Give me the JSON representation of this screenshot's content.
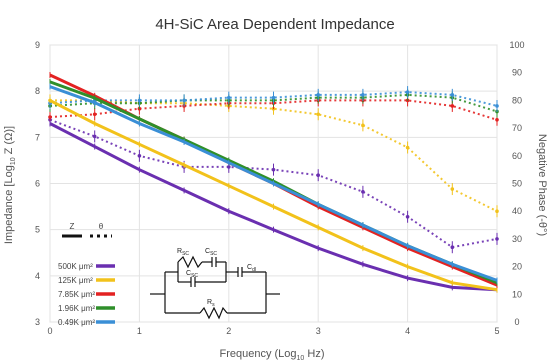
{
  "chart_data": {
    "type": "line",
    "title": "4H-SiC Area Dependent Impedance",
    "xlabel": "Frequency (Log",
    "xlabel_sub": "10",
    "xlabel_end": " Hz)",
    "ylabel": "Impedance [Log",
    "ylabel_sub": "10",
    "ylabel_end": " Z (Ω)]",
    "y2label": "Negative Phase (-θ°)",
    "xlim": [
      0,
      5
    ],
    "ylim": [
      3,
      9
    ],
    "y2lim": [
      0,
      100
    ],
    "xticks": [
      "0",
      "1",
      "2",
      "3",
      "4",
      "5"
    ],
    "yticks": [
      "3",
      "4",
      "5",
      "6",
      "7",
      "8",
      "9"
    ],
    "y2ticks": [
      "0",
      "10",
      "20",
      "30",
      "40",
      "50",
      "60",
      "70",
      "80",
      "90",
      "100"
    ],
    "grid": true,
    "legend": {
      "placement": "bottom-left",
      "style_labels": [
        "Z",
        "θ"
      ],
      "entries": [
        {
          "label": "500K μm²",
          "color": "#6a2fb0"
        },
        {
          "label": "125K μm²",
          "color": "#f2c21b"
        },
        {
          "label": "7.85K μm²",
          "color": "#e32222"
        },
        {
          "label": "1.96K μm²",
          "color": "#2f8f2a"
        },
        {
          "label": "0.49K μm²",
          "color": "#3a8fd6"
        }
      ]
    },
    "circuit_labels": {
      "r_top": "R",
      "r_top_sub": "SC",
      "c_top": "C",
      "c_top_sub": "SC",
      "c_mid": "C",
      "c_mid_sub": "SC",
      "c_right": "C",
      "c_right_sub": "dl",
      "r_bottom": "R",
      "r_bottom_sub": "s"
    },
    "series": [
      {
        "name": "500K μm²",
        "color": "#6a2fb0",
        "impedance": [
          [
            0,
            7.3
          ],
          [
            0.5,
            6.8
          ],
          [
            1,
            6.3
          ],
          [
            1.5,
            5.85
          ],
          [
            2,
            5.4
          ],
          [
            2.5,
            5.0
          ],
          [
            3,
            4.6
          ],
          [
            3.5,
            4.25
          ],
          [
            4,
            3.95
          ],
          [
            4.5,
            3.75
          ],
          [
            5,
            3.7
          ]
        ],
        "phase": [
          [
            0,
            73
          ],
          [
            0.5,
            67
          ],
          [
            1,
            60
          ],
          [
            1.5,
            56
          ],
          [
            2,
            56
          ],
          [
            2.5,
            55
          ],
          [
            3,
            53
          ],
          [
            3.5,
            47
          ],
          [
            4,
            38
          ],
          [
            4.5,
            27
          ],
          [
            5,
            30
          ]
        ]
      },
      {
        "name": "125K μm²",
        "color": "#f2c21b",
        "impedance": [
          [
            0,
            7.8
          ],
          [
            0.5,
            7.3
          ],
          [
            1,
            6.85
          ],
          [
            1.5,
            6.4
          ],
          [
            2,
            5.95
          ],
          [
            2.5,
            5.5
          ],
          [
            3,
            5.05
          ],
          [
            3.5,
            4.6
          ],
          [
            4,
            4.2
          ],
          [
            4.5,
            3.85
          ],
          [
            5,
            3.7
          ]
        ],
        "phase": [
          [
            0,
            80
          ],
          [
            0.5,
            80
          ],
          [
            1,
            79
          ],
          [
            1.5,
            79
          ],
          [
            2,
            78
          ],
          [
            2.5,
            77
          ],
          [
            3,
            75
          ],
          [
            3.5,
            71
          ],
          [
            4,
            63
          ],
          [
            4.5,
            48
          ],
          [
            5,
            40
          ]
        ]
      },
      {
        "name": "7.85K μm²",
        "color": "#e32222",
        "impedance": [
          [
            0,
            8.35
          ],
          [
            0.5,
            7.9
          ],
          [
            1,
            7.4
          ],
          [
            1.5,
            6.95
          ],
          [
            2,
            6.45
          ],
          [
            2.5,
            6.0
          ],
          [
            3,
            5.5
          ],
          [
            3.5,
            5.05
          ],
          [
            4,
            4.6
          ],
          [
            4.5,
            4.2
          ],
          [
            5,
            3.8
          ]
        ],
        "phase": [
          [
            0,
            74
          ],
          [
            0.5,
            75
          ],
          [
            1,
            77
          ],
          [
            1.5,
            78
          ],
          [
            2,
            79
          ],
          [
            2.5,
            79
          ],
          [
            3,
            80
          ],
          [
            3.5,
            80
          ],
          [
            4,
            80
          ],
          [
            4.5,
            78
          ],
          [
            5,
            73
          ]
        ]
      },
      {
        "name": "1.96K μm²",
        "color": "#2f8f2a",
        "impedance": [
          [
            0,
            8.2
          ],
          [
            0.5,
            7.85
          ],
          [
            1,
            7.4
          ],
          [
            1.5,
            6.95
          ],
          [
            2,
            6.5
          ],
          [
            2.5,
            6.05
          ],
          [
            3,
            5.55
          ],
          [
            3.5,
            5.1
          ],
          [
            4,
            4.65
          ],
          [
            4.5,
            4.25
          ],
          [
            5,
            3.85
          ]
        ],
        "phase": [
          [
            0,
            78
          ],
          [
            0.5,
            79
          ],
          [
            1,
            79
          ],
          [
            1.5,
            80
          ],
          [
            2,
            80
          ],
          [
            2.5,
            80
          ],
          [
            3,
            81
          ],
          [
            3.5,
            81
          ],
          [
            4,
            82
          ],
          [
            4.5,
            81
          ],
          [
            5,
            76
          ]
        ]
      },
      {
        "name": "0.49K μm²",
        "color": "#3a8fd6",
        "impedance": [
          [
            0,
            8.1
          ],
          [
            0.5,
            7.75
          ],
          [
            1,
            7.3
          ],
          [
            1.5,
            6.9
          ],
          [
            2,
            6.45
          ],
          [
            2.5,
            6.0
          ],
          [
            3,
            5.55
          ],
          [
            3.5,
            5.1
          ],
          [
            4,
            4.65
          ],
          [
            4.5,
            4.25
          ],
          [
            5,
            3.9
          ]
        ],
        "phase": [
          [
            0,
            79
          ],
          [
            0.5,
            80
          ],
          [
            1,
            80
          ],
          [
            1.5,
            80
          ],
          [
            2,
            81
          ],
          [
            2.5,
            81
          ],
          [
            3,
            82
          ],
          [
            3.5,
            82
          ],
          [
            4,
            83
          ],
          [
            4.5,
            82
          ],
          [
            5,
            78
          ]
        ]
      }
    ]
  }
}
